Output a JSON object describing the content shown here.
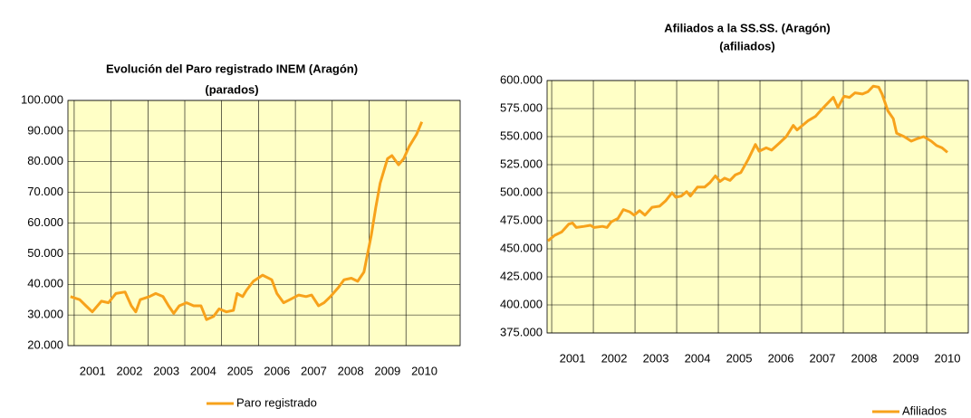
{
  "chart_data": [
    {
      "type": "line",
      "title": "Evolución del Paro registrado INEM (Aragón)",
      "subtitle": "(parados)",
      "x": [
        2000.9,
        2001.15,
        2001.32,
        2001.49,
        2001.74,
        2001.93,
        2002.13,
        2002.38,
        2002.55,
        2002.67,
        2002.79,
        2003.04,
        2003.21,
        2003.41,
        2003.56,
        2003.7,
        2003.85,
        2004.05,
        2004.24,
        2004.44,
        2004.59,
        2004.78,
        2004.93,
        2005.13,
        2005.32,
        2005.42,
        2005.57,
        2005.67,
        2005.86,
        2006.11,
        2006.36,
        2006.5,
        2006.68,
        2006.85,
        2007.09,
        2007.29,
        2007.44,
        2007.63,
        2007.78,
        2007.95,
        2008.17,
        2008.32,
        2008.52,
        2008.69,
        2008.86,
        2009.06,
        2009.18,
        2009.3,
        2009.5,
        2009.62,
        2009.8,
        2009.94,
        2010.09,
        2010.29,
        2010.43
      ],
      "series": [
        {
          "name": "Paro registrado",
          "color": "#f7a21b",
          "values": [
            36000,
            35000,
            33000,
            31000,
            34500,
            34000,
            37000,
            37500,
            33000,
            31000,
            35000,
            36000,
            37000,
            36000,
            33000,
            30500,
            33000,
            34000,
            33000,
            33000,
            28500,
            29500,
            32000,
            31000,
            31500,
            37000,
            36000,
            38000,
            41000,
            43000,
            41500,
            37000,
            34000,
            35000,
            36500,
            36000,
            36500,
            33000,
            34000,
            36000,
            39000,
            41500,
            42000,
            41000,
            44000,
            56000,
            65000,
            73000,
            81000,
            82000,
            79000,
            81000,
            85000,
            89000,
            93000
          ]
        }
      ],
      "xlim": [
        2000.83,
        2011.47
      ],
      "xticks": [
        2001,
        2002,
        2003,
        2004,
        2005,
        2006,
        2007,
        2008,
        2009,
        2010
      ],
      "ylim": [
        20000,
        100000
      ],
      "yticks": [
        {
          "value": 20000,
          "label": "20.000"
        },
        {
          "value": 30000,
          "label": "30.000"
        },
        {
          "value": 40000,
          "label": "40.000"
        },
        {
          "value": 50000,
          "label": "50.000"
        },
        {
          "value": 60000,
          "label": "60.000"
        },
        {
          "value": 70000,
          "label": "70.000"
        },
        {
          "value": 80000,
          "label": "80.000"
        },
        {
          "value": 90000,
          "label": "90.000"
        },
        {
          "value": 100000,
          "label": "100.000"
        }
      ],
      "grid": true,
      "legend": "bottom"
    },
    {
      "type": "line",
      "title": "Afiliados a la SS.SS.  (Aragón)",
      "subtitle": "(afiliados)",
      "x": [
        2000.91,
        2001.07,
        2001.24,
        2001.41,
        2001.5,
        2001.59,
        2001.78,
        2001.93,
        2002.02,
        2002.22,
        2002.33,
        2002.43,
        2002.59,
        2002.72,
        2002.87,
        2002.98,
        2003.11,
        2003.24,
        2003.41,
        2003.59,
        2003.74,
        2003.89,
        2003.98,
        2004.11,
        2004.24,
        2004.33,
        2004.5,
        2004.67,
        2004.8,
        2004.93,
        2005.04,
        2005.15,
        2005.28,
        2005.41,
        2005.54,
        2005.72,
        2005.89,
        2005.98,
        2006.15,
        2006.28,
        2006.46,
        2006.63,
        2006.8,
        2006.89,
        2007.02,
        2007.15,
        2007.33,
        2007.5,
        2007.63,
        2007.76,
        2007.87,
        2008.02,
        2008.15,
        2008.28,
        2008.46,
        2008.59,
        2008.72,
        2008.85,
        2008.93,
        2009.07,
        2009.2,
        2009.28,
        2009.46,
        2009.63,
        2009.76,
        2009.93,
        2010.11,
        2010.24,
        2010.37,
        2010.5
      ],
      "series": [
        {
          "name": "Afiliados",
          "color": "#f7a21b",
          "values": [
            457000,
            462000,
            465000,
            472000,
            473000,
            469000,
            470000,
            471000,
            469000,
            470000,
            469000,
            474000,
            477000,
            485000,
            483000,
            480000,
            484000,
            480000,
            487000,
            488000,
            493000,
            500000,
            496000,
            497000,
            501000,
            497000,
            505000,
            505000,
            509000,
            515000,
            510000,
            513000,
            511000,
            516000,
            518000,
            530000,
            543000,
            537000,
            540000,
            538000,
            544000,
            550000,
            560000,
            556000,
            560000,
            564000,
            568000,
            575000,
            580000,
            585000,
            576000,
            586000,
            585000,
            589000,
            588000,
            590000,
            595000,
            594000,
            588000,
            573000,
            566000,
            553000,
            550000,
            546000,
            548000,
            550000,
            546000,
            542000,
            540000,
            536000
          ]
        }
      ],
      "xlim": [
        2000.89,
        2011.0
      ],
      "xticks": [
        2001,
        2002,
        2003,
        2004,
        2005,
        2006,
        2007,
        2008,
        2009,
        2010
      ],
      "ylim": [
        375000,
        600000
      ],
      "yticks": [
        {
          "value": 375000,
          "label": "375.000"
        },
        {
          "value": 400000,
          "label": "400.000"
        },
        {
          "value": 425000,
          "label": "425.000"
        },
        {
          "value": 450000,
          "label": "450.000"
        },
        {
          "value": 475000,
          "label": "475.000"
        },
        {
          "value": 500000,
          "label": "500.000"
        },
        {
          "value": 525000,
          "label": "525.000"
        },
        {
          "value": 550000,
          "label": "550.000"
        },
        {
          "value": 575000,
          "label": "575.000"
        },
        {
          "value": 600000,
          "label": "600.000"
        }
      ],
      "grid": true,
      "legend": "bottom"
    }
  ]
}
